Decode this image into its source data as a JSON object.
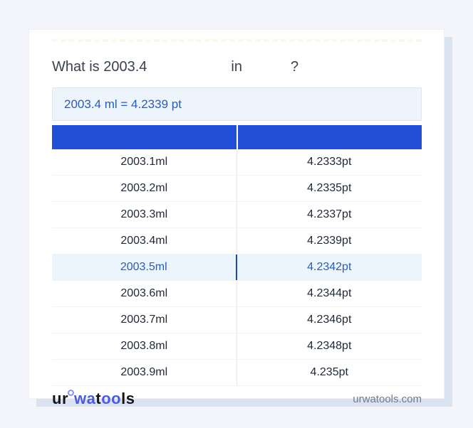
{
  "heading": {
    "prefix": "What is 2003.4",
    "connector": "in",
    "suffix": "?"
  },
  "result": {
    "text": "2003.4 ml = 4.2339 pt"
  },
  "table": {
    "rows": [
      {
        "ml": "2003.1ml",
        "pt": "4.2333pt",
        "highlighted": false
      },
      {
        "ml": "2003.2ml",
        "pt": "4.2335pt",
        "highlighted": false
      },
      {
        "ml": "2003.3ml",
        "pt": "4.2337pt",
        "highlighted": false
      },
      {
        "ml": "2003.4ml",
        "pt": "4.2339pt",
        "highlighted": false
      },
      {
        "ml": "2003.5ml",
        "pt": "4.2342pt",
        "highlighted": true
      },
      {
        "ml": "2003.6ml",
        "pt": "4.2344pt",
        "highlighted": false
      },
      {
        "ml": "2003.7ml",
        "pt": "4.2346pt",
        "highlighted": false
      },
      {
        "ml": "2003.8ml",
        "pt": "4.2348pt",
        "highlighted": false
      },
      {
        "ml": "2003.9ml",
        "pt": "4.235pt",
        "highlighted": false
      }
    ]
  },
  "footer": {
    "logo": {
      "ur": "ur",
      "wa": "wa",
      "t": "t",
      "oo": "oo",
      "ls": "ls"
    },
    "site": "urwatools.com"
  },
  "colors": {
    "header_blue": "#2150d6",
    "highlight_bg": "#ecf4fd",
    "link_blue": "#2a5db4",
    "result_bg": "#edf4fc",
    "logo_blue": "#4a5ae8",
    "card_shadow": "#dce3f0"
  }
}
